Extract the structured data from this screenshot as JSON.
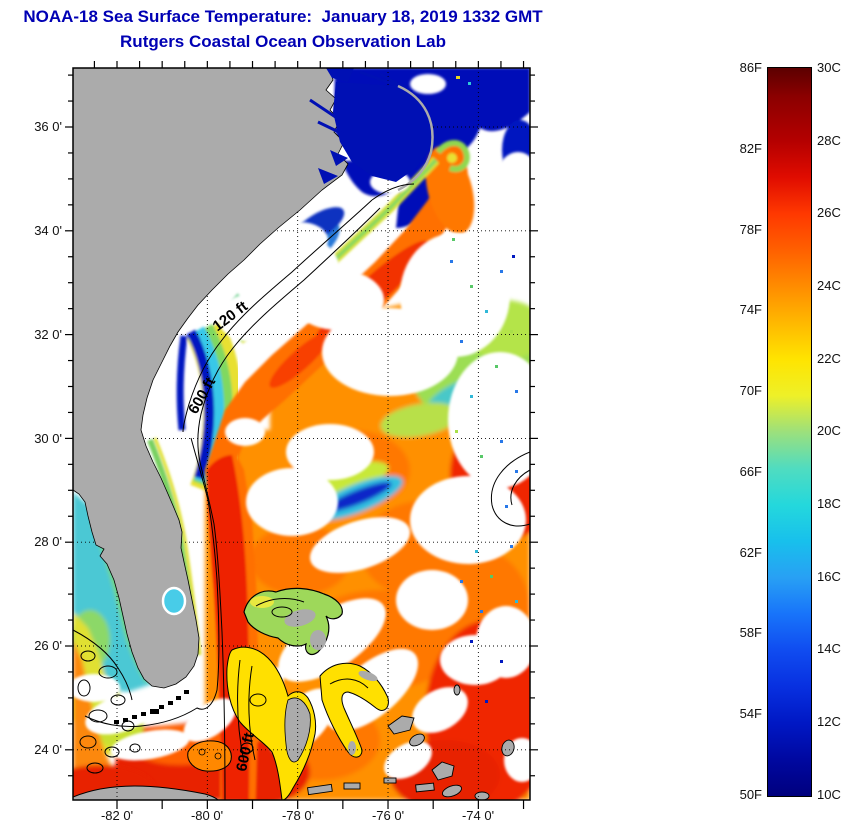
{
  "title": {
    "line1": "NOAA-18 Sea Surface Temperature:  January 18, 2019 1332 GMT",
    "line2": "Rutgers Coastal Ocean Observation Lab"
  },
  "map": {
    "x_tick_labels": [
      "-82 0'",
      "-80 0'",
      "-78 0'",
      "-76 0'",
      "-74 0'"
    ],
    "y_tick_labels": [
      "36 0'",
      "34 0'",
      "32 0'",
      "30 0'",
      "28 0'",
      "26 0'",
      "24 0'"
    ],
    "contour_labels": {
      "shelf_120ft": "120 ft",
      "shelf_600ft": "600 ft",
      "bahamas_600ft": "600 ft"
    }
  },
  "colorbar": {
    "fahrenheit_labels": [
      "86F",
      "82F",
      "78F",
      "74F",
      "70F",
      "66F",
      "62F",
      "58F",
      "54F",
      "50F"
    ],
    "celsius_labels": [
      "30C",
      "28C",
      "26C",
      "24C",
      "22C",
      "20C",
      "18C",
      "16C",
      "14C",
      "12C",
      "10C"
    ]
  },
  "colors": {
    "title_text": "#0000B4",
    "land_gray": "#ABABAB",
    "cloud_white": "#FFFFFF",
    "warm_orange": "#FF9000",
    "hot_red": "#E82000",
    "cold_navy": "#000CB8",
    "scale_top_30c": "#5C0000",
    "scale_bottom_10c": "#00007E"
  }
}
